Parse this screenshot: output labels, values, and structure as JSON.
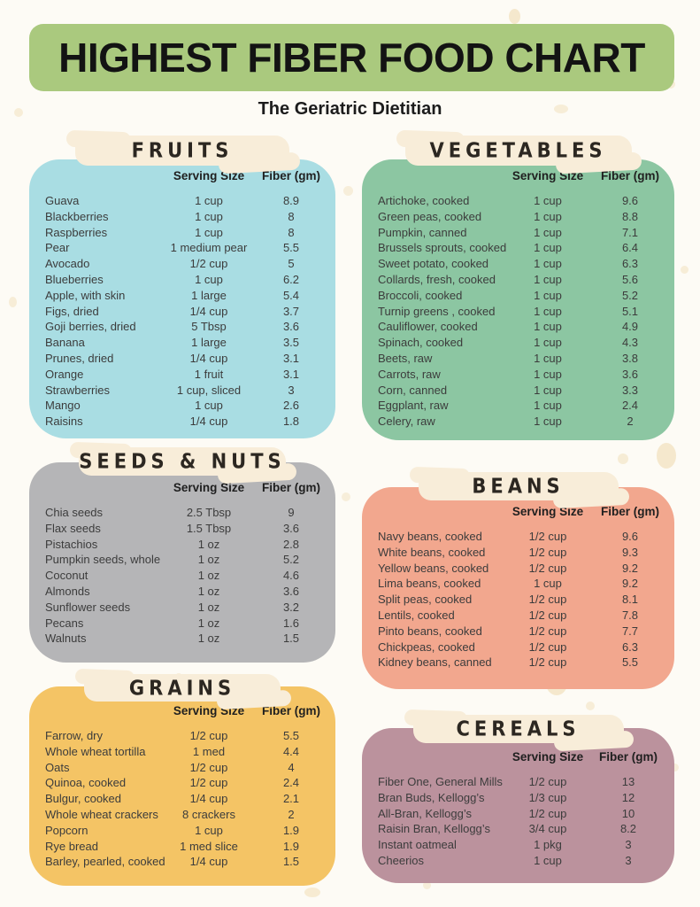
{
  "header": {
    "title": "HIGHEST FIBER FOOD CHART",
    "subtitle": "The Geriatric Dietitian"
  },
  "columns": {
    "serving": "Serving Size",
    "fiber": "Fiber (gm)"
  },
  "palette": {
    "page-bg": "#fdfbf5",
    "title-band": "#aac97e",
    "banner": "#f8edd9",
    "speckle": "#f3e4c3",
    "text": "#3c3c3c"
  },
  "sections": [
    {
      "id": "fruits",
      "title": "FRUITS",
      "color": "#a9dde3",
      "rows": [
        [
          "Guava",
          "1 cup",
          "8.9"
        ],
        [
          "Blackberries",
          "1 cup",
          "8"
        ],
        [
          "Raspberries",
          "1 cup",
          "8"
        ],
        [
          "Pear",
          "1 medium pear",
          "5.5"
        ],
        [
          "Avocado",
          "1/2 cup",
          "5"
        ],
        [
          "Blueberries",
          "1 cup",
          "6.2"
        ],
        [
          "Apple, with skin",
          "1 large",
          "5.4"
        ],
        [
          "Figs, dried",
          "1/4 cup",
          "3.7"
        ],
        [
          "Goji berries, dried",
          "5 Tbsp",
          "3.6"
        ],
        [
          "Banana",
          "1 large",
          "3.5"
        ],
        [
          "Prunes, dried",
          "1/4 cup",
          "3.1"
        ],
        [
          "Orange",
          "1 fruit",
          "3.1"
        ],
        [
          "Strawberries",
          "1 cup, sliced",
          "3"
        ],
        [
          "Mango",
          "1 cup",
          "2.6"
        ],
        [
          "Raisins",
          "1/4 cup",
          "1.8"
        ]
      ]
    },
    {
      "id": "vegetables",
      "title": "VEGETABLES",
      "color": "#8cc6a2",
      "rows": [
        [
          "Artichoke, cooked",
          "1 cup",
          "9.6"
        ],
        [
          "Green peas, cooked",
          "1 cup",
          "8.8"
        ],
        [
          "Pumpkin, canned",
          "1 cup",
          "7.1"
        ],
        [
          "Brussels sprouts, cooked",
          "1 cup",
          "6.4"
        ],
        [
          "Sweet potato, cooked",
          "1 cup",
          "6.3"
        ],
        [
          "Collards, fresh, cooked",
          "1 cup",
          "5.6"
        ],
        [
          "Broccoli, cooked",
          "1 cup",
          "5.2"
        ],
        [
          "Turnip greens , cooked",
          "1 cup",
          "5.1"
        ],
        [
          "Cauliflower, cooked",
          "1 cup",
          "4.9"
        ],
        [
          "Spinach, cooked",
          "1 cup",
          "4.3"
        ],
        [
          "Beets, raw",
          "1 cup",
          "3.8"
        ],
        [
          "Carrots, raw",
          "1 cup",
          "3.6"
        ],
        [
          "Corn, canned",
          "1 cup",
          "3.3"
        ],
        [
          "Eggplant, raw",
          "1 cup",
          "2.4"
        ],
        [
          "Celery, raw",
          "1 cup",
          "2"
        ]
      ]
    },
    {
      "id": "seeds-nuts",
      "title": "SEEDS & NUTS",
      "color": "#b5b5b7",
      "rows": [
        [
          "Chia seeds",
          "2.5 Tbsp",
          "9"
        ],
        [
          "Flax seeds",
          "1.5 Tbsp",
          "3.6"
        ],
        [
          "Pistachios",
          "1 oz",
          "2.8"
        ],
        [
          "Pumpkin seeds, whole",
          "1 oz",
          "5.2"
        ],
        [
          "Coconut",
          "1 oz",
          "4.6"
        ],
        [
          "Almonds",
          "1 oz",
          "3.6"
        ],
        [
          "Sunflower seeds",
          "1 oz",
          "3.2"
        ],
        [
          "Pecans",
          "1 oz",
          "1.6"
        ],
        [
          "Walnuts",
          "1 oz",
          "1.5"
        ]
      ]
    },
    {
      "id": "beans",
      "title": "BEANS",
      "color": "#f2a78e",
      "rows": [
        [
          "Navy beans, cooked",
          "1/2 cup",
          "9.6"
        ],
        [
          "White beans, cooked",
          "1/2 cup",
          "9.3"
        ],
        [
          "Yellow beans, cooked",
          "1/2 cup",
          "9.2"
        ],
        [
          "Lima beans, cooked",
          "1 cup",
          "9.2"
        ],
        [
          "Split peas, cooked",
          "1/2 cup",
          "8.1"
        ],
        [
          "Lentils, cooked",
          "1/2 cup",
          "7.8"
        ],
        [
          "Pinto beans, cooked",
          "1/2 cup",
          "7.7"
        ],
        [
          "Chickpeas, cooked",
          "1/2 cup",
          "6.3"
        ],
        [
          "Kidney beans, canned",
          "1/2 cup",
          "5.5"
        ]
      ]
    },
    {
      "id": "grains",
      "title": "GRAINS",
      "color": "#f4c465",
      "rows": [
        [
          "Farrow, dry",
          "1/2 cup",
          "5.5"
        ],
        [
          "Whole wheat tortilla",
          "1 med",
          "4.4"
        ],
        [
          "Oats",
          "1/2 cup",
          "4"
        ],
        [
          "Quinoa, cooked",
          "1/2 cup",
          "2.4"
        ],
        [
          "Bulgur, cooked",
          "1/4 cup",
          "2.1"
        ],
        [
          "Whole wheat crackers",
          "8 crackers",
          "2"
        ],
        [
          "Popcorn",
          "1 cup",
          "1.9"
        ],
        [
          "Rye bread",
          "1 med slice",
          "1.9"
        ],
        [
          "Barley, pearled, cooked",
          "1/4 cup",
          "1.5"
        ]
      ]
    },
    {
      "id": "cereals",
      "title": "CEREALS",
      "color": "#bb929d",
      "rows": [
        [
          "Fiber One, General Mills",
          "1/2 cup",
          "13"
        ],
        [
          "Bran Buds, Kellogg’s",
          "1/3 cup",
          "12"
        ],
        [
          "All-Bran, Kellogg’s",
          "1/2 cup",
          "10"
        ],
        [
          "Raisin Bran, Kellogg’s",
          "3/4 cup",
          "8.2"
        ],
        [
          "Instant oatmeal",
          "1 pkg",
          "3"
        ],
        [
          "Cheerios",
          "1 cup",
          "3"
        ]
      ]
    }
  ]
}
